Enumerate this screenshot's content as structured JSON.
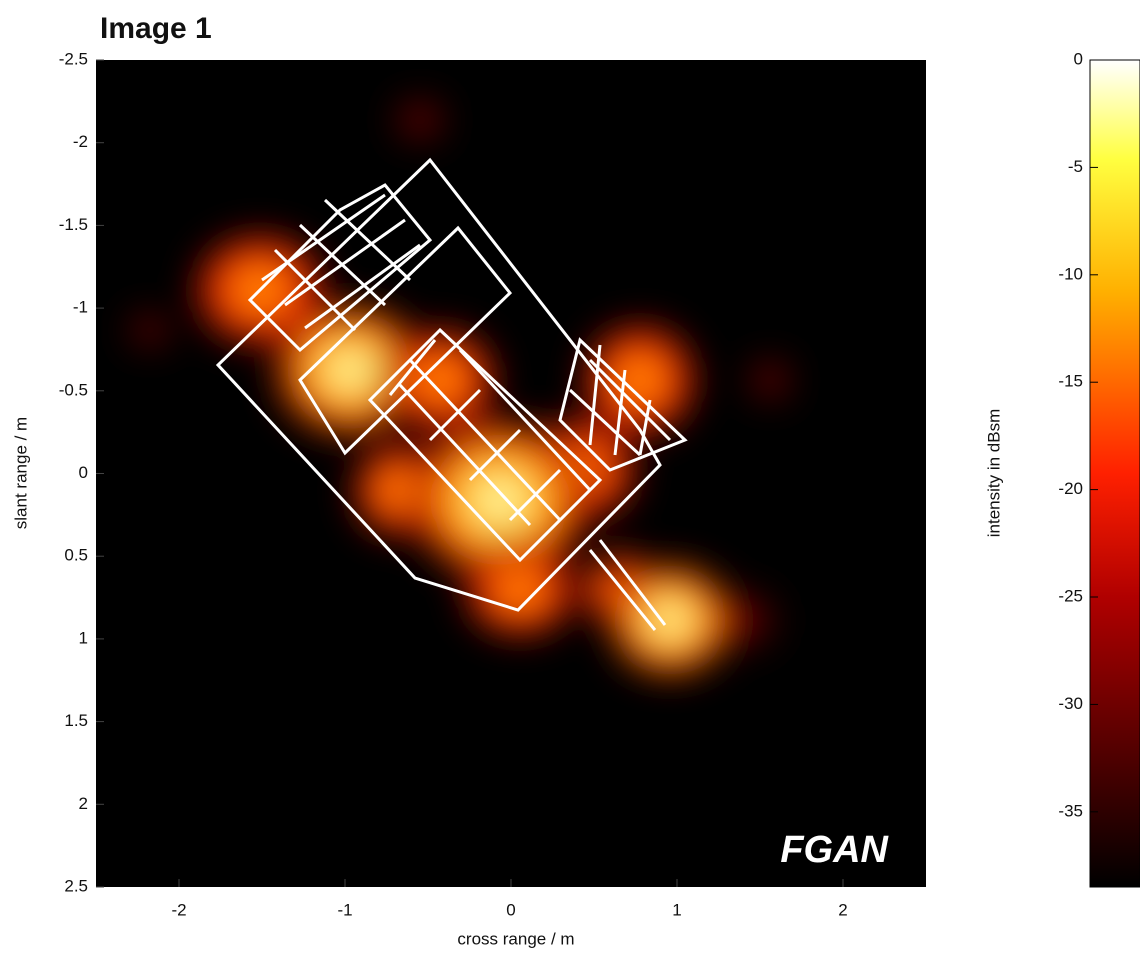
{
  "chart_data": {
    "type": "image",
    "title": "Image 1",
    "xlabel": "cross range / m",
    "ylabel": "slant range / m",
    "xlim": [
      -2.5,
      2.5
    ],
    "xticks": [
      -2,
      -1,
      0,
      1,
      2
    ],
    "ylim": [
      -2.5,
      2.5
    ],
    "y_reversed": true,
    "yticks": [
      -2.5,
      -2,
      -1.5,
      -1,
      -0.5,
      0,
      0.5,
      1,
      1.5,
      2,
      2.5
    ],
    "annotation": "FGAN",
    "colorbar": {
      "label": "intensity in dBsm",
      "colormap": "hot",
      "clim": [
        -38.5,
        0
      ],
      "ticks": [
        0,
        -5,
        -10,
        -15,
        -20,
        -25,
        -30,
        -35
      ]
    }
  }
}
